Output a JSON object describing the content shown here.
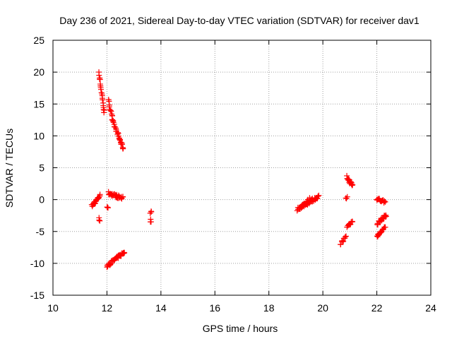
{
  "chart_data": {
    "type": "scatter",
    "title": "Day 236 of 2021, Sidereal Day-to-day VTEC variation (SDTVAR) for receiver dav1",
    "xlabel": "GPS time / hours",
    "ylabel": "SDTVAR / TECUs",
    "xlim": [
      10,
      24
    ],
    "ylim": [
      -15,
      25
    ],
    "xticks": [
      10,
      12,
      14,
      16,
      18,
      20,
      22,
      24
    ],
    "yticks": [
      -15,
      -10,
      -5,
      0,
      5,
      10,
      15,
      20,
      25
    ],
    "grid": true,
    "marker": "+",
    "color": "#ff0000",
    "series": [
      {
        "name": "SDTVAR",
        "segments": [
          {
            "x": [
              11.45,
              11.75
            ],
            "y": [
              -1.0,
              0.7
            ],
            "n": 22
          },
          {
            "x": [
              11.7,
              11.9
            ],
            "y": [
              20.0,
              13.5
            ],
            "n": 20
          },
          {
            "x": [
              11.72,
              11.72
            ],
            "y": [
              -2.8,
              -3.2
            ],
            "n": 3
          },
          {
            "x": [
              12.0,
              12.05
            ],
            "y": [
              -1.0,
              -1.5
            ],
            "n": 3
          },
          {
            "x": [
              12.05,
              12.2
            ],
            "y": [
              15.5,
              13.0
            ],
            "n": 10
          },
          {
            "x": [
              12.2,
              12.6
            ],
            "y": [
              12.5,
              8.0
            ],
            "n": 30
          },
          {
            "x": [
              12.05,
              12.6
            ],
            "y": [
              1.0,
              0.2
            ],
            "n": 30
          },
          {
            "x": [
              12.0,
              12.65
            ],
            "y": [
              -10.4,
              -8.2
            ],
            "n": 35
          },
          {
            "x": [
              13.6,
              13.65
            ],
            "y": [
              -2.0,
              -2.0
            ],
            "n": 3
          },
          {
            "x": [
              13.6,
              13.65
            ],
            "y": [
              -3.3,
              -3.3
            ],
            "n": 3
          },
          {
            "x": [
              19.05,
              19.85
            ],
            "y": [
              -1.5,
              0.5
            ],
            "n": 40
          },
          {
            "x": [
              19.2,
              19.55
            ],
            "y": [
              -1.2,
              0.2
            ],
            "n": 20
          },
          {
            "x": [
              20.65,
              20.85
            ],
            "y": [
              -7.0,
              -5.9
            ],
            "n": 10
          },
          {
            "x": [
              20.88,
              21.1
            ],
            "y": [
              3.5,
              2.2
            ],
            "n": 15
          },
          {
            "x": [
              20.85,
              20.9
            ],
            "y": [
              0.3,
              0.3
            ],
            "n": 3
          },
          {
            "x": [
              20.9,
              21.1
            ],
            "y": [
              -4.2,
              -3.4
            ],
            "n": 10
          },
          {
            "x": [
              22.0,
              22.3
            ],
            "y": [
              0.2,
              -0.4
            ],
            "n": 15
          },
          {
            "x": [
              22.0,
              22.35
            ],
            "y": [
              -3.8,
              -2.4
            ],
            "n": 18
          },
          {
            "x": [
              22.0,
              22.3
            ],
            "y": [
              -5.8,
              -4.4
            ],
            "n": 18
          }
        ]
      }
    ]
  }
}
